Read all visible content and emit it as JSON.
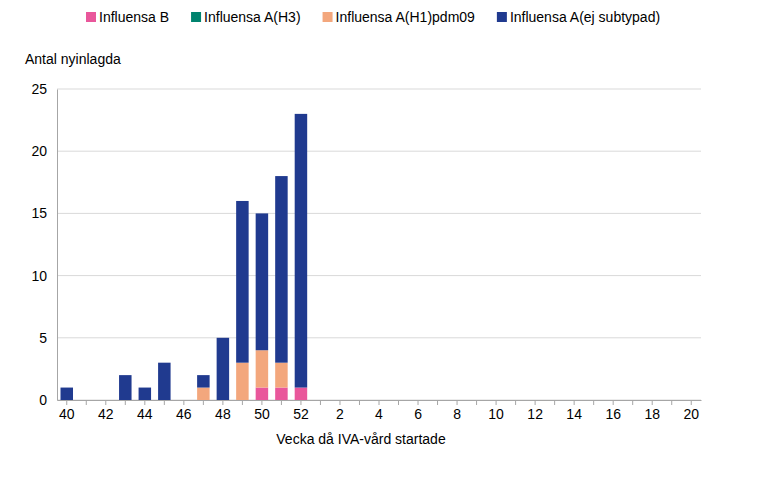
{
  "chart_data": {
    "type": "bar",
    "stacked": true,
    "grid": true,
    "legend": "top",
    "y_label": "Antal nyinlagda",
    "x_label": "Vecka då IVA-vård startade",
    "categories": [
      "40",
      null,
      "42",
      null,
      "44",
      null,
      "46",
      null,
      "48",
      null,
      "50",
      null,
      "52",
      null,
      "2",
      null,
      "4",
      null,
      "6",
      null,
      "8",
      null,
      "10",
      null,
      "12",
      null,
      "14",
      null,
      "16",
      null,
      "18",
      null,
      "20"
    ],
    "ylim": [
      0,
      25
    ],
    "yticks": [
      0,
      5,
      10,
      15,
      20,
      25
    ],
    "series": [
      {
        "name": "Influensa B",
        "color": "#e9579b",
        "values": [
          0,
          0,
          0,
          0,
          0,
          0,
          0,
          0,
          0,
          0,
          1,
          1,
          1,
          null,
          null,
          null,
          null,
          null,
          null,
          null,
          null,
          null,
          null,
          null,
          null,
          null,
          null,
          null,
          null,
          null,
          null,
          null,
          null
        ]
      },
      {
        "name": "Influensa A(H3)",
        "color": "#00836e",
        "values": [
          0,
          0,
          0,
          0,
          0,
          0,
          0,
          0,
          0,
          0,
          0,
          0,
          0,
          null,
          null,
          null,
          null,
          null,
          null,
          null,
          null,
          null,
          null,
          null,
          null,
          null,
          null,
          null,
          null,
          null,
          null,
          null,
          null
        ]
      },
      {
        "name": "Influensa A(H1)pdm09",
        "color": "#f3a77d",
        "values": [
          0,
          0,
          0,
          0,
          0,
          0,
          0,
          1,
          0,
          3,
          3,
          2,
          0,
          null,
          null,
          null,
          null,
          null,
          null,
          null,
          null,
          null,
          null,
          null,
          null,
          null,
          null,
          null,
          null,
          null,
          null,
          null,
          null
        ]
      },
      {
        "name": "Influensa A(ej subtypad)",
        "color": "#203a8f",
        "values": [
          1,
          0,
          0,
          2,
          1,
          3,
          0,
          1,
          5,
          13,
          11,
          15,
          22,
          null,
          null,
          null,
          null,
          null,
          null,
          null,
          null,
          null,
          null,
          null,
          null,
          null,
          null,
          null,
          null,
          null,
          null,
          null,
          null
        ]
      }
    ]
  }
}
